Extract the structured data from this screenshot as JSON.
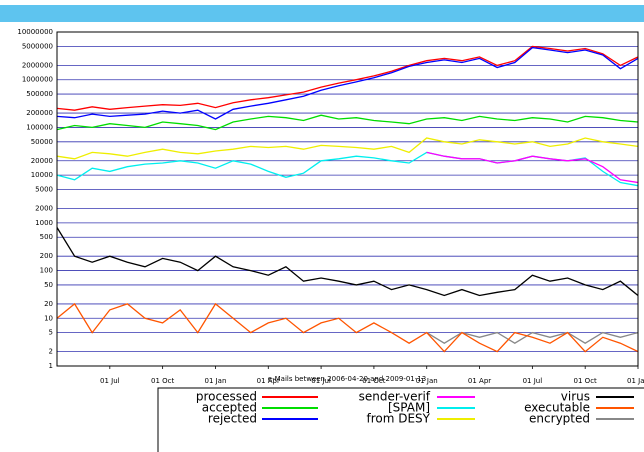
{
  "chart_data": {
    "type": "line",
    "subtitle": "e-Mails between 2006-04-20 and 2009-01-13",
    "categories": [
      null,
      null,
      null,
      "01 Jul",
      null,
      null,
      "01 Oct",
      null,
      null,
      "01 Jan",
      null,
      null,
      "01 Apr",
      null,
      null,
      "01 Jul",
      null,
      null,
      "01 Oct",
      null,
      null,
      "01 Jan",
      null,
      null,
      "01 Apr",
      null,
      null,
      "01 Jul",
      null,
      null,
      "01 Oct",
      null,
      null,
      "01 Jan"
    ],
    "log_scale": true,
    "grid": true,
    "ylim": [
      1,
      10000000
    ],
    "yticks": [
      1,
      2,
      5,
      10,
      20,
      50,
      100,
      200,
      500,
      1000,
      2000,
      5000,
      10000,
      20000,
      50000,
      100000,
      200000,
      500000,
      1000000,
      2000000,
      5000000,
      10000000
    ],
    "series": [
      {
        "name": "processed",
        "color": "#ff0000",
        "values": [
          250000,
          230000,
          270000,
          240000,
          260000,
          280000,
          300000,
          290000,
          320000,
          260000,
          330000,
          380000,
          420000,
          480000,
          550000,
          700000,
          850000,
          1000000,
          1200000,
          1500000,
          2000000,
          2500000,
          2800000,
          2500000,
          3000000,
          2000000,
          2500000,
          5000000,
          4500000,
          4000000,
          4500000,
          3500000,
          2000000,
          3000000
        ]
      },
      {
        "name": "accepted",
        "color": "#00dd00",
        "values": [
          90000,
          110000,
          100000,
          120000,
          110000,
          100000,
          130000,
          120000,
          110000,
          90000,
          130000,
          150000,
          170000,
          160000,
          140000,
          180000,
          150000,
          160000,
          140000,
          130000,
          120000,
          150000,
          160000,
          140000,
          170000,
          150000,
          140000,
          160000,
          150000,
          130000,
          170000,
          160000,
          140000,
          130000
        ]
      },
      {
        "name": "rejected",
        "color": "#0000ff",
        "values": [
          170000,
          160000,
          190000,
          170000,
          180000,
          190000,
          220000,
          200000,
          230000,
          150000,
          240000,
          280000,
          320000,
          380000,
          450000,
          600000,
          750000,
          900000,
          1100000,
          1400000,
          1900000,
          2300000,
          2600000,
          2300000,
          2800000,
          1800000,
          2300000,
          4700000,
          4200000,
          3700000,
          4200000,
          3300000,
          1700000,
          2800000
        ]
      },
      {
        "name": "sender-verif",
        "color": "#ff00ff",
        "values": [
          null,
          null,
          null,
          null,
          null,
          null,
          null,
          null,
          null,
          null,
          null,
          null,
          null,
          null,
          null,
          null,
          null,
          null,
          null,
          null,
          null,
          30000,
          25000,
          22000,
          22000,
          18000,
          20000,
          25000,
          22000,
          20000,
          22000,
          15000,
          8000,
          7000
        ]
      },
      {
        "name": "[SPAM]",
        "color": "#00eeee",
        "values": [
          10000,
          8000,
          14000,
          12000,
          15000,
          17000,
          18000,
          20000,
          18000,
          14000,
          20000,
          17000,
          12000,
          9000,
          11000,
          20000,
          22000,
          25000,
          23000,
          20000,
          18000,
          30000,
          25000,
          22000,
          22000,
          18000,
          20000,
          25000,
          22000,
          20000,
          23000,
          12000,
          7000,
          6000
        ]
      },
      {
        "name": "from DESY",
        "color": "#eeee00",
        "values": [
          25000,
          22000,
          30000,
          28000,
          25000,
          30000,
          35000,
          30000,
          28000,
          32000,
          35000,
          40000,
          38000,
          40000,
          35000,
          42000,
          40000,
          38000,
          35000,
          40000,
          30000,
          60000,
          50000,
          45000,
          55000,
          50000,
          45000,
          50000,
          40000,
          45000,
          60000,
          50000,
          45000,
          40000
        ]
      },
      {
        "name": "virus",
        "color": "#000000",
        "values": [
          800,
          200,
          150,
          200,
          150,
          120,
          180,
          150,
          100,
          200,
          120,
          100,
          80,
          120,
          60,
          70,
          60,
          50,
          60,
          40,
          50,
          40,
          30,
          40,
          30,
          35,
          40,
          80,
          60,
          70,
          50,
          40,
          60,
          30
        ]
      },
      {
        "name": "executable",
        "color": "#ff5500",
        "values": [
          10,
          20,
          5,
          15,
          20,
          10,
          8,
          15,
          5,
          20,
          10,
          5,
          8,
          10,
          5,
          8,
          10,
          5,
          8,
          5,
          3,
          5,
          2,
          5,
          3,
          2,
          5,
          4,
          3,
          5,
          2,
          4,
          3,
          2
        ]
      },
      {
        "name": "encrypted",
        "color": "#888888",
        "values": [
          null,
          null,
          null,
          null,
          null,
          null,
          null,
          null,
          null,
          null,
          null,
          null,
          null,
          null,
          null,
          null,
          null,
          null,
          null,
          null,
          null,
          5,
          3,
          5,
          4,
          5,
          3,
          5,
          4,
          5,
          3,
          5,
          4,
          5
        ]
      }
    ]
  }
}
